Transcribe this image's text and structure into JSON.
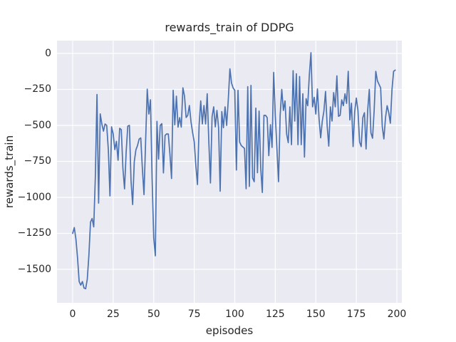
{
  "chart_data": {
    "type": "line",
    "title": "rewards_train of DDPG",
    "xlabel": "episodes",
    "ylabel": "rewards_train",
    "grid": true,
    "legend": false,
    "x_ticks": [
      0,
      25,
      50,
      75,
      100,
      125,
      150,
      175,
      200
    ],
    "y_ticks": [
      0,
      -250,
      -500,
      -750,
      -1000,
      -1250,
      -1500
    ],
    "xlim": [
      -9.67,
      203.08
    ],
    "ylim": [
      -1732.7,
      89.1
    ],
    "style": {
      "figure_bg": "#ffffff",
      "plot_bg": "#eaeaf2",
      "grid_color": "#ffffff",
      "line_color": "#4c72b0",
      "text_color": "#262626"
    },
    "series": [
      {
        "name": "rewards_train",
        "color": "#4c72b0",
        "x_start": 0,
        "x_step": 1,
        "values": [
          -1250,
          -1210,
          -1290,
          -1420,
          -1585,
          -1610,
          -1585,
          -1630,
          -1635,
          -1570,
          -1403,
          -1172,
          -1147,
          -1205,
          -850,
          -285,
          -1040,
          -420,
          -490,
          -540,
          -490,
          -500,
          -670,
          -990,
          -510,
          -560,
          -668,
          -611,
          -742,
          -520,
          -530,
          -800,
          -941,
          -684,
          -505,
          -500,
          -885,
          -1050,
          -753,
          -670,
          -640,
          -595,
          -587,
          -800,
          -981,
          -611,
          -248,
          -421,
          -322,
          -867,
          -1280,
          -1406,
          -472,
          -734,
          -500,
          -488,
          -830,
          -570,
          -559,
          -560,
          -700,
          -869,
          -256,
          -496,
          -297,
          -512,
          -446,
          -512,
          -239,
          -297,
          -445,
          -430,
          -362,
          -475,
          -550,
          -615,
          -780,
          -911,
          -500,
          -330,
          -490,
          -362,
          -490,
          -280,
          -615,
          -900,
          -440,
          -371,
          -510,
          -396,
          -513,
          -957,
          -404,
          -516,
          -371,
          -500,
          -321,
          -107,
          -206,
          -240,
          -256,
          -810,
          -256,
          -615,
          -640,
          -650,
          -660,
          -940,
          -231,
          -924,
          -222,
          -865,
          -891,
          -380,
          -829,
          -400,
          -793,
          -966,
          -430,
          -430,
          -446,
          -710,
          -495,
          -653,
          -132,
          -430,
          -660,
          -891,
          -430,
          -250,
          -396,
          -330,
          -560,
          -620,
          -371,
          -634,
          -120,
          -470,
          -141,
          -634,
          -160,
          -634,
          -280,
          -720,
          -314,
          -363,
          -150,
          5,
          -371,
          -305,
          -421,
          -247,
          -454,
          -586,
          -470,
          -400,
          -264,
          -503,
          -644,
          -371,
          -470,
          -272,
          -371,
          -156,
          -437,
          -430,
          -322,
          -363,
          -280,
          -347,
          -124,
          -462,
          -346,
          -647,
          -404,
          -310,
          -396,
          -615,
          -647,
          -446,
          -412,
          -664,
          -396,
          -250,
          -552,
          -589,
          -396,
          -124,
          -190,
          -215,
          -239,
          -508,
          -594,
          -446,
          -363,
          -412,
          -485,
          -250,
          -124,
          -116
        ]
      }
    ]
  }
}
